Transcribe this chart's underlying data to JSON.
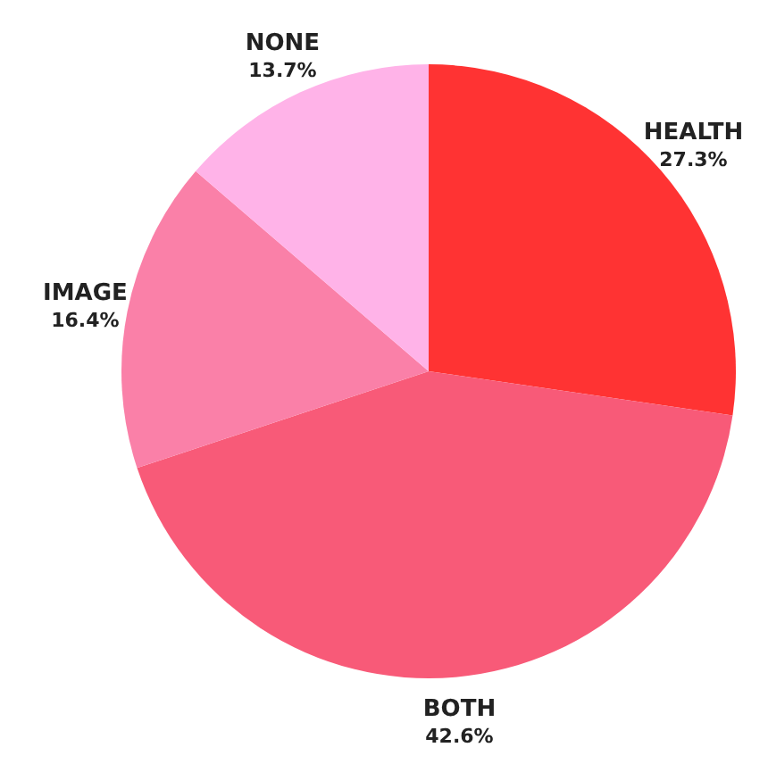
{
  "chart_data": {
    "type": "pie",
    "categories": [
      "HEALTH",
      "BOTH",
      "IMAGE",
      "NONE"
    ],
    "values": [
      27.3,
      42.6,
      16.4,
      13.7
    ],
    "colors": [
      "#ff3333",
      "#f85a78",
      "#fa80a8",
      "#ffb3e8"
    ],
    "value_labels": [
      "27.3%",
      "42.6%",
      "16.4%",
      "13.7%"
    ]
  }
}
